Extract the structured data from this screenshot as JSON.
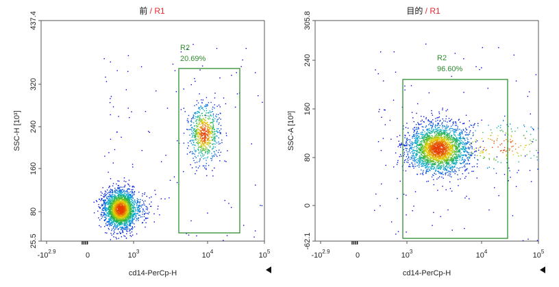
{
  "chart_data": [
    {
      "type": "scatter",
      "title_main": "前",
      "title_sep": " / ",
      "title_gate": "R1",
      "xlabel": "cd14-PerCp-H",
      "ylabel": "SSC-H [10³]",
      "x_scale": "biexponential",
      "x_ticks": [
        "-10^2.9",
        "0",
        "10^3",
        "10^4",
        "10^5"
      ],
      "y_ticks": [
        "25.5",
        "80",
        "160",
        "240",
        "320",
        "437.4"
      ],
      "ylim": [
        25.5,
        437.4
      ],
      "gate": {
        "name": "R2",
        "percent": "20.69%",
        "color": "#2e8b2e"
      },
      "populations": [
        {
          "center_log_x": 2.65,
          "center_y": 85,
          "spread_x": 0.22,
          "spread_y": 18,
          "count": 2400
        },
        {
          "center_log_x": 3.95,
          "center_y": 228,
          "spread_x": 0.1,
          "spread_y": 28,
          "count": 700
        }
      ]
    },
    {
      "type": "scatter",
      "title_main": "目的",
      "title_sep": " / ",
      "title_gate": "R1",
      "xlabel": "cd14-PerCp-H",
      "ylabel": "SSC-A [10³]",
      "x_scale": "biexponential",
      "x_ticks": [
        "-10^2.9",
        "0",
        "10^3",
        "10^4",
        "10^5"
      ],
      "y_ticks": [
        "-62.1",
        "0",
        "80",
        "160",
        "240",
        "305.8"
      ],
      "ylim": [
        -62.1,
        305.8
      ],
      "gate": {
        "name": "R2",
        "percent": "96.60%",
        "color": "#2e8b2e"
      },
      "populations": [
        {
          "center_log_x": 3.42,
          "center_y": 95,
          "spread_x": 0.2,
          "spread_y": 20,
          "count": 2600
        },
        {
          "center_log_x": 4.25,
          "center_y": 100,
          "spread_x": 0.4,
          "spread_y": 20,
          "count": 200
        }
      ]
    }
  ]
}
